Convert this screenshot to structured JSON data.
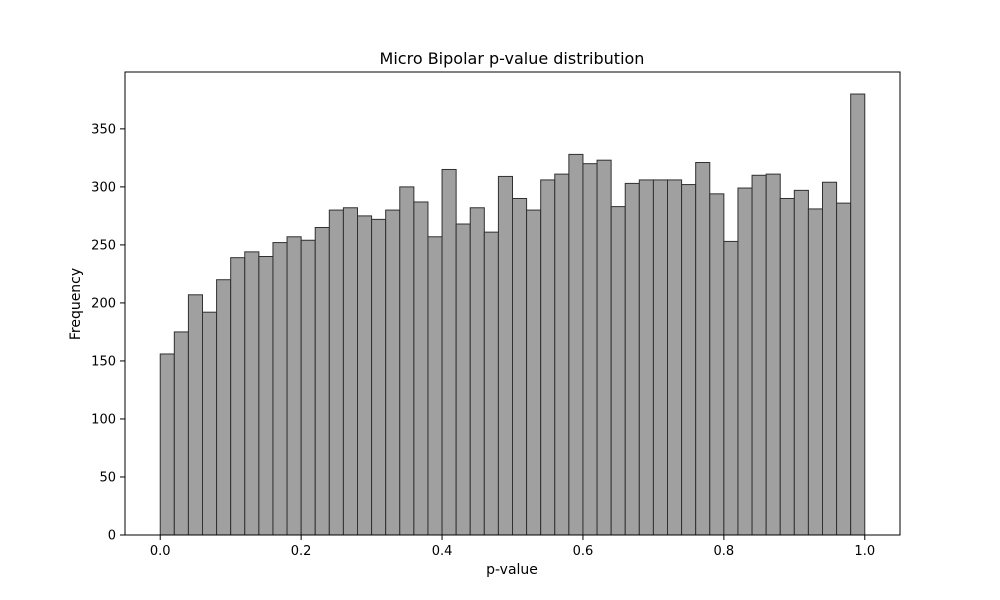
{
  "chart_data": {
    "type": "bar",
    "title": "Micro Bipolar p-value distribution",
    "xlabel": "p-value",
    "ylabel": "Frequency",
    "xlim": [
      -0.05,
      1.05
    ],
    "ylim": [
      0,
      399
    ],
    "x_ticks": [
      0.0,
      0.2,
      0.4,
      0.6,
      0.8,
      1.0
    ],
    "x_tick_labels": [
      "0.0",
      "0.2",
      "0.4",
      "0.6",
      "0.8",
      "1.0"
    ],
    "y_ticks": [
      0,
      50,
      100,
      150,
      200,
      250,
      300,
      350
    ],
    "y_tick_labels": [
      "0",
      "50",
      "100",
      "150",
      "200",
      "250",
      "300",
      "350"
    ],
    "bin_range": [
      0.0,
      1.0
    ],
    "bins": 50,
    "values": [
      156,
      175,
      207,
      192,
      220,
      239,
      244,
      240,
      252,
      257,
      254,
      265,
      280,
      282,
      275,
      272,
      280,
      300,
      287,
      257,
      315,
      268,
      282,
      261,
      309,
      290,
      280,
      306,
      311,
      328,
      320,
      323,
      283,
      303,
      306,
      306,
      306,
      302,
      321,
      294,
      253,
      299,
      310,
      311,
      290,
      297,
      281,
      304,
      286,
      380
    ],
    "bar_color": "#a0a0a0",
    "edge_color": "#303030",
    "grid": false,
    "legend": "none"
  }
}
